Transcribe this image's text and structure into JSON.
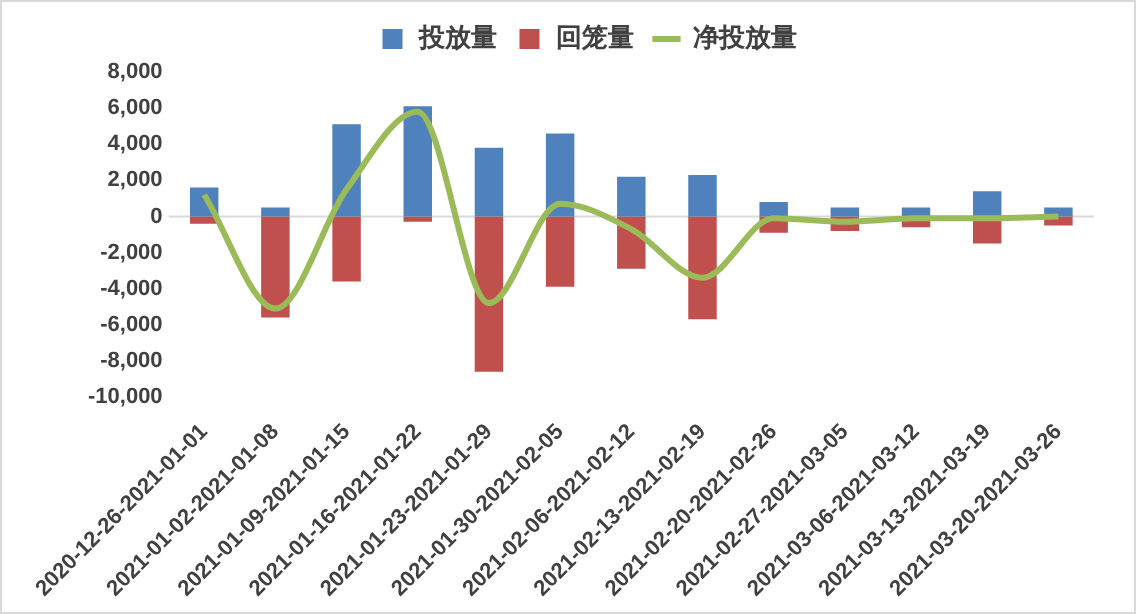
{
  "chart_data": {
    "type": "bar",
    "stacked": true,
    "legend": "top",
    "categories": [
      "2020-12-26-2021-01-01",
      "2021-01-02-2021-01-08",
      "2021-01-09-2021-01-15",
      "2021-01-16-2021-01-22",
      "2021-01-23-2021-01-29",
      "2021-01-30-2021-02-05",
      "2021-02-06-2021-02-12",
      "2021-02-13-2021-02-19",
      "2021-02-20-2021-02-26",
      "2021-02-27-2021-03-05",
      "2021-03-06-2021-03-12",
      "2021-03-13-2021-03-19",
      "2021-03-20-2021-03-26"
    ],
    "series": [
      {
        "name": "投放量",
        "color": "#4f81bd",
        "values": [
          1600,
          500,
          5100,
          6100,
          3800,
          4600,
          2200,
          2300,
          800,
          500,
          500,
          1400,
          500
        ]
      },
      {
        "name": "回笼量",
        "color": "#c0504d",
        "values": [
          -400,
          -5600,
          -3600,
          -300,
          -8600,
          -3900,
          -2900,
          -5700,
          -900,
          -800,
          -600,
          -1500,
          -500
        ]
      },
      {
        "name": "净投放量",
        "type": "line",
        "color": "#9bbb59",
        "values": [
          1200,
          -5100,
          1500,
          5800,
          -4800,
          700,
          -700,
          -3400,
          -100,
          -300,
          -100,
          -100,
          0
        ]
      }
    ],
    "ylim": [
      -10000,
      8000
    ],
    "yticks": [
      {
        "value": -10000,
        "label": "-10,000"
      },
      {
        "value": -8000,
        "label": "-8,000"
      },
      {
        "value": -6000,
        "label": "-6,000"
      },
      {
        "value": -4000,
        "label": "-4,000"
      },
      {
        "value": -2000,
        "label": "-2,000"
      },
      0,
      {
        "value": 2000,
        "label": "2,000"
      },
      {
        "value": 4000,
        "label": "4,000"
      },
      {
        "value": 6000,
        "label": "6,000"
      },
      {
        "value": 8000,
        "label": "8,000"
      }
    ]
  }
}
